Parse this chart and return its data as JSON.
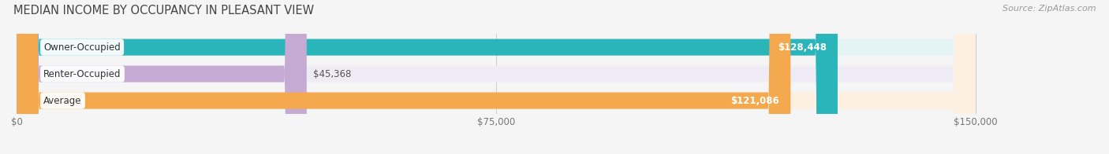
{
  "title": "MEDIAN INCOME BY OCCUPANCY IN PLEASANT VIEW",
  "source": "Source: ZipAtlas.com",
  "categories": [
    "Owner-Occupied",
    "Renter-Occupied",
    "Average"
  ],
  "values": [
    128448,
    45368,
    121086
  ],
  "labels": [
    "$128,448",
    "$45,368",
    "$121,086"
  ],
  "label_inside": [
    true,
    false,
    true
  ],
  "bar_colors": [
    "#2ab5bb",
    "#c5aad4",
    "#f5a94e"
  ],
  "bar_bg_colors": [
    "#e4f4f5",
    "#f0ecf5",
    "#fdf0e0"
  ],
  "xlim": [
    0,
    150000
  ],
  "xticks": [
    0,
    75000,
    150000
  ],
  "xticklabels": [
    "$0",
    "$75,000",
    "$150,000"
  ],
  "title_fontsize": 10.5,
  "source_fontsize": 8,
  "label_fontsize": 8.5,
  "cat_fontsize": 8.5,
  "bar_height": 0.62,
  "figsize": [
    14.06,
    1.96
  ],
  "dpi": 100
}
